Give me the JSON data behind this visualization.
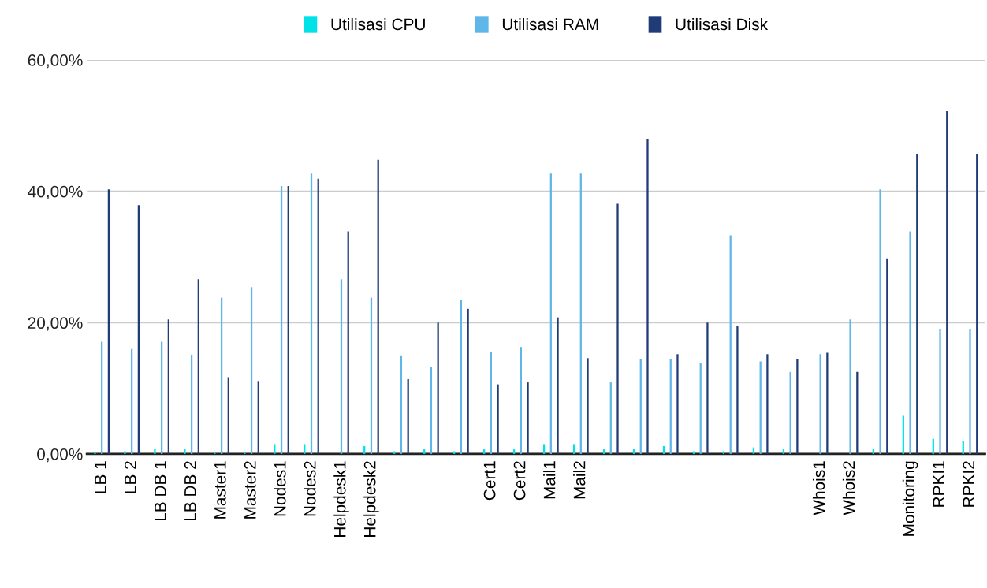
{
  "chart_data": {
    "type": "bar",
    "categories": [
      "LB 1",
      "LB 2",
      "LB DB 1",
      "LB DB 2",
      "Master1",
      "Master2",
      "Nodes1",
      "Nodes2",
      "Helpdesk1",
      "Helpdesk2",
      null,
      null,
      null,
      "Cert1",
      "Cert2",
      "Mail1",
      "Mail2",
      null,
      null,
      null,
      null,
      null,
      null,
      null,
      "Whois1",
      "Whois2",
      null,
      "Monitoring",
      "RPKI1",
      "RPKI2"
    ],
    "series": [
      {
        "name": "Utilisasi CPU",
        "color": "#00e1e8",
        "values": [
          0.2,
          0.4,
          0.7,
          0.7,
          0.2,
          0.2,
          1.5,
          1.5,
          0,
          1.2,
          0.4,
          0.7,
          0.4,
          0.7,
          0.7,
          1.5,
          1.5,
          0.7,
          0.7,
          1.2,
          0.4,
          0.4,
          1.0,
          0.7,
          0,
          0,
          0.7,
          5.8,
          2.3,
          2.0
        ]
      },
      {
        "name": "Utilisasi RAM",
        "color": "#5fb6e8",
        "values": [
          17.1,
          16.0,
          17.1,
          15.0,
          23.8,
          25.4,
          40.8,
          42.7,
          26.6,
          23.8,
          14.9,
          13.3,
          23.5,
          15.5,
          16.3,
          42.7,
          42.7,
          10.9,
          14.4,
          14.4,
          13.9,
          33.3,
          14.1,
          12.5,
          15.2,
          20.5,
          40.3,
          33.9,
          19.0,
          19.0
        ]
      },
      {
        "name": "Utilisasi Disk",
        "color": "#203c78",
        "values": [
          40.3,
          37.9,
          20.5,
          26.6,
          11.7,
          11.0,
          40.8,
          41.9,
          33.9,
          44.8,
          11.4,
          20.0,
          22.1,
          10.6,
          10.9,
          20.8,
          14.6,
          38.1,
          48.0,
          15.2,
          20.0,
          19.5,
          15.2,
          14.4,
          15.4,
          12.5,
          29.8,
          45.6,
          52.2,
          45.6
        ]
      }
    ],
    "ylim": [
      0,
      60
    ],
    "yticks": [
      {
        "value": 0,
        "label": "0,00%"
      },
      {
        "value": 20,
        "label": "20,00%"
      },
      {
        "value": 40,
        "label": "40,00%"
      },
      {
        "value": 60,
        "label": "60,00%"
      }
    ],
    "grid": "y",
    "legend": "top"
  }
}
